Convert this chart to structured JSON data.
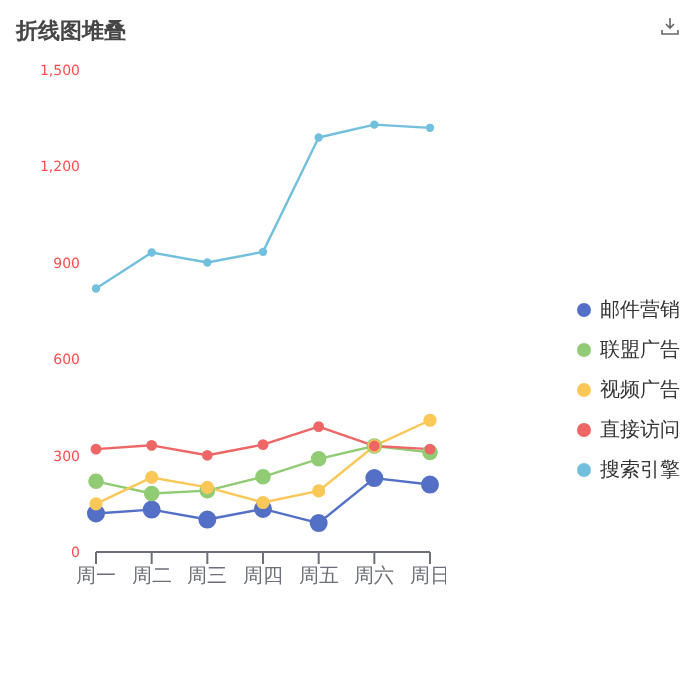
{
  "chart_data": {
    "type": "line",
    "title": "折线图堆叠",
    "categories": [
      "周一",
      "周二",
      "周三",
      "周四",
      "周五",
      "周六",
      "周日"
    ],
    "series": [
      {
        "name": "邮件营销",
        "color": "#5470c6",
        "values": [
          120,
          132,
          101,
          134,
          90,
          230,
          210
        ]
      },
      {
        "name": "联盟广告",
        "color": "#91cc75",
        "values": [
          220,
          182,
          191,
          234,
          290,
          330,
          310
        ]
      },
      {
        "name": "视频广告",
        "color": "#fac858",
        "values": [
          150,
          232,
          201,
          154,
          190,
          330,
          410
        ]
      },
      {
        "name": "直接访问",
        "color": "#ee6666",
        "values": [
          320,
          332,
          301,
          334,
          390,
          330,
          320
        ]
      },
      {
        "name": "搜索引擎",
        "color": "#73c0de",
        "values": [
          820,
          932,
          901,
          934,
          1290,
          1330,
          1320
        ]
      }
    ],
    "ylim": [
      0,
      1500
    ],
    "yticks": [
      0,
      300,
      600,
      900,
      {
        "value": 1200,
        "label": "1,200"
      },
      {
        "value": 1500,
        "label": "1,500"
      }
    ],
    "grid": false,
    "legend": "right",
    "marker": "circle",
    "line_style": "solid"
  }
}
